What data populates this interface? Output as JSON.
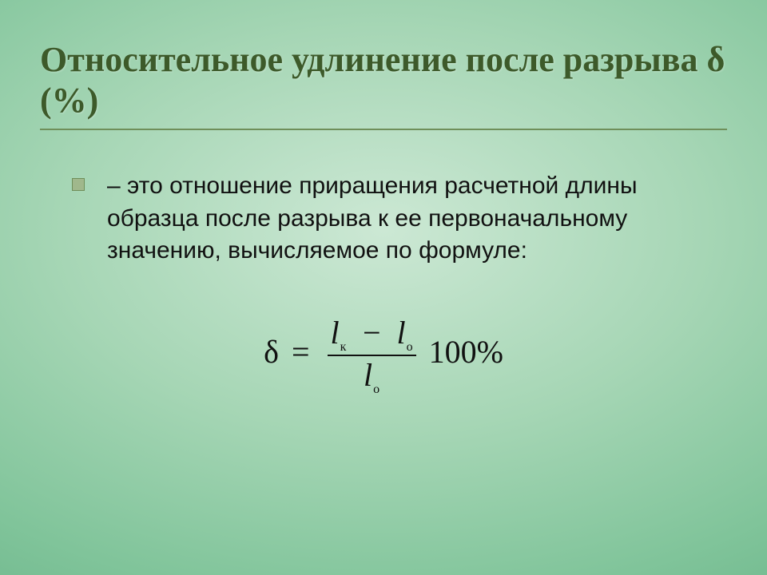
{
  "title": "Относительное удлинение после разрыва δ (%)",
  "body": "– это отношение приращения расчетной длины образца после разрыва к ее первоначальному значению, вычисляемое по формуле:",
  "formula": {
    "lhs": "δ",
    "eq": "=",
    "num_var1": "l",
    "num_sub1": "к",
    "minus": "−",
    "num_var2": "l",
    "num_sub2": "о",
    "den_var": "l",
    "den_sub": "о",
    "rhs": "100%"
  },
  "colors": {
    "title": "#3d5a2a",
    "rule": "#6f8f5a",
    "bullet_fill": "#a0b88c",
    "bullet_border": "#6f8f5a",
    "text": "#111111",
    "bg_inner": "#cce8d4",
    "bg_outer": "#5aa87c"
  },
  "typography": {
    "title_fontsize": 44,
    "body_fontsize": 30,
    "formula_fontsize": 40,
    "sub_fontsize": 16
  }
}
